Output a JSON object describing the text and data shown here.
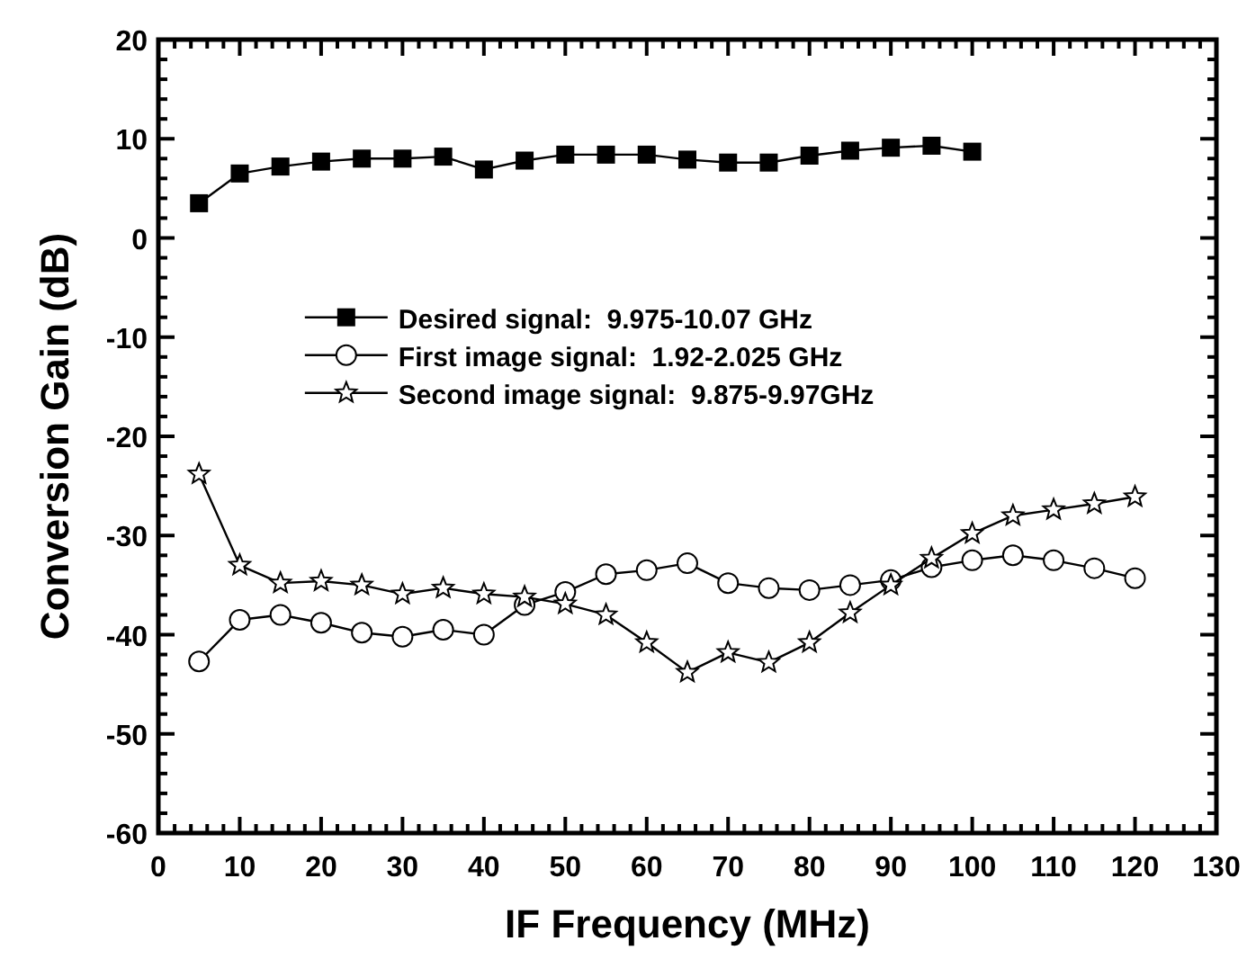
{
  "chart_data": {
    "type": "line",
    "xlabel": "IF Frequency (MHz)",
    "ylabel": "Conversion Gain (dB)",
    "x": [
      5,
      10,
      15,
      20,
      25,
      30,
      35,
      40,
      45,
      50,
      55,
      60,
      65,
      70,
      75,
      80,
      85,
      90,
      95,
      100,
      105,
      110,
      115,
      120
    ],
    "series": [
      {
        "name": "Desired signal:  9.975-10.07 GHz",
        "color": "#000000",
        "marker": "square",
        "x": [
          5,
          10,
          15,
          20,
          25,
          30,
          35,
          40,
          45,
          50,
          55,
          60,
          65,
          70,
          75,
          80,
          85,
          90,
          95,
          100
        ],
        "values": [
          3.5,
          6.5,
          7.2,
          7.7,
          8,
          8,
          8.2,
          6.9,
          7.8,
          8.4,
          8.4,
          8.4,
          7.9,
          7.6,
          7.6,
          8.3,
          8.8,
          9.1,
          9.3,
          8.7
        ]
      },
      {
        "name": "First image signal:  1.92-2.025 GHz",
        "color": "#000000",
        "marker": "circle",
        "values": [
          -42.7,
          -38.5,
          -38,
          -38.8,
          -39.8,
          -40.2,
          -39.5,
          -40,
          -37,
          -35.7,
          -33.9,
          -33.5,
          -32.8,
          -34.8,
          -35.3,
          -35.5,
          -35,
          -34.5,
          -33.2,
          -32.5,
          -32,
          -32.5,
          -33.3,
          -34.3
        ]
      },
      {
        "name": "Second image signal:  9.875-9.97GHz",
        "color": "#000000",
        "marker": "star",
        "values": [
          -23.8,
          -33,
          -34.8,
          -34.6,
          -35,
          -35.9,
          -35.3,
          -35.9,
          -36.2,
          -36.9,
          -38,
          -40.8,
          -43.8,
          -41.8,
          -42.8,
          -40.8,
          -37.8,
          -35,
          -32.3,
          -29.8,
          -28,
          -27.4,
          -26.8,
          -26.1
        ]
      }
    ],
    "xlim": [
      0,
      130
    ],
    "xticks": [
      0,
      10,
      20,
      30,
      40,
      50,
      60,
      70,
      80,
      90,
      100,
      110,
      120,
      130
    ],
    "ylim": [
      -60,
      20
    ],
    "yticks": [
      -60,
      -50,
      -40,
      -30,
      -20,
      -10,
      0,
      10,
      20
    ],
    "legend": "top",
    "grid": false,
    "line_style": "solid"
  }
}
